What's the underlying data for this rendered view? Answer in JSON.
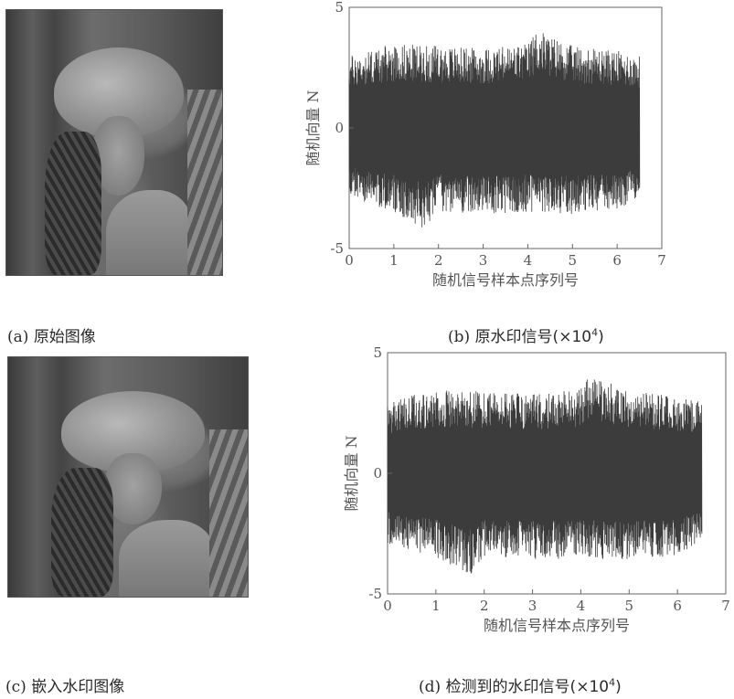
{
  "captions": {
    "a": {
      "label": "(a)",
      "text": "原始图像"
    },
    "b": {
      "label": "(b)",
      "text": "原水印信号(",
      "mult": "×10",
      "exp": "4",
      "close": ")"
    },
    "c": {
      "label": "(c)",
      "text": "嵌入水印图像"
    },
    "d": {
      "label": "(d)",
      "text": "检测到的水印信号(",
      "mult": "×10",
      "exp": "4",
      "close": ")"
    }
  },
  "chart_data": [
    {
      "type": "line",
      "xlabel": "随机信号样本点序列号",
      "ylabel": "随机向量 N",
      "xlim": [
        0,
        7
      ],
      "ylim": [
        -5,
        5
      ],
      "xticks": [
        "0",
        "1",
        "2",
        "3",
        "4",
        "5",
        "6",
        "7"
      ],
      "yticks": [
        "5",
        "0",
        "-5"
      ],
      "x_extent": [
        0,
        6.5
      ],
      "envelope_upper": [
        [
          0,
          3.0
        ],
        [
          1,
          3.5
        ],
        [
          2,
          3.4
        ],
        [
          3,
          3.3
        ],
        [
          4,
          3.5
        ],
        [
          4.2,
          4.1
        ],
        [
          5,
          3.4
        ],
        [
          6,
          3.2
        ],
        [
          6.5,
          3.0
        ]
      ],
      "envelope_lower": [
        [
          0,
          -2.9
        ],
        [
          1,
          -3.5
        ],
        [
          1.7,
          -4.2
        ],
        [
          2,
          -3.5
        ],
        [
          3,
          -3.6
        ],
        [
          4,
          -3.5
        ],
        [
          5,
          -3.6
        ],
        [
          6,
          -3.4
        ],
        [
          6.5,
          -2.8
        ]
      ],
      "series_color": "#3c3c3c"
    },
    {
      "type": "line",
      "xlabel": "随机信号样本点序列号",
      "ylabel": "随机向量 N",
      "xlim": [
        0,
        7
      ],
      "ylim": [
        -5,
        5
      ],
      "xticks": [
        "0",
        "1",
        "2",
        "3",
        "4",
        "5",
        "6",
        "7"
      ],
      "yticks": [
        "5",
        "0",
        "-5"
      ],
      "x_extent": [
        0,
        6.5
      ],
      "envelope_upper": [
        [
          0,
          3.0
        ],
        [
          1,
          3.5
        ],
        [
          2,
          3.4
        ],
        [
          3,
          3.3
        ],
        [
          4,
          3.5
        ],
        [
          4.2,
          4.1
        ],
        [
          5,
          3.4
        ],
        [
          6,
          3.2
        ],
        [
          6.5,
          3.0
        ]
      ],
      "envelope_lower": [
        [
          0,
          -2.9
        ],
        [
          1,
          -3.5
        ],
        [
          1.7,
          -4.2
        ],
        [
          2,
          -3.5
        ],
        [
          3,
          -3.6
        ],
        [
          4,
          -3.5
        ],
        [
          5,
          -3.6
        ],
        [
          6,
          -3.4
        ],
        [
          6.5,
          -2.8
        ]
      ],
      "series_color": "#3c3c3c"
    }
  ]
}
